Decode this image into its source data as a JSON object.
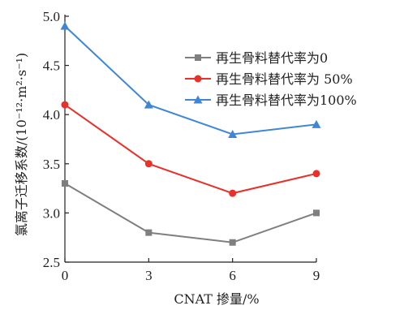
{
  "chart_data": {
    "type": "line",
    "title": "",
    "xlabel": "CNAT 掺量/%",
    "ylabel": "氯离子迁移系数/(10⁻¹²·m²·s⁻¹)",
    "x": [
      0,
      3,
      6,
      9
    ],
    "xticks": [
      "0",
      "3",
      "6",
      "9"
    ],
    "xlim": [
      0,
      9
    ],
    "ylim": [
      2.5,
      5.0
    ],
    "yticks": [
      "2.5",
      "3.0",
      "3.5",
      "4.0",
      "4.5",
      "5.0"
    ],
    "grid": false,
    "legend_position": "top-right",
    "series": [
      {
        "name": "再生骨料替代率为0",
        "marker": "square",
        "color": "#7f7f7f",
        "values": [
          3.3,
          2.8,
          2.7,
          3.0
        ]
      },
      {
        "name": "再生骨料替代率为 50%",
        "marker": "circle",
        "color": "#e8312a",
        "values": [
          4.1,
          3.5,
          3.2,
          3.4
        ]
      },
      {
        "name": "再生骨料替代率为100%",
        "marker": "triangle",
        "color": "#3f87d6",
        "values": [
          4.9,
          4.1,
          3.8,
          3.9
        ]
      }
    ]
  }
}
